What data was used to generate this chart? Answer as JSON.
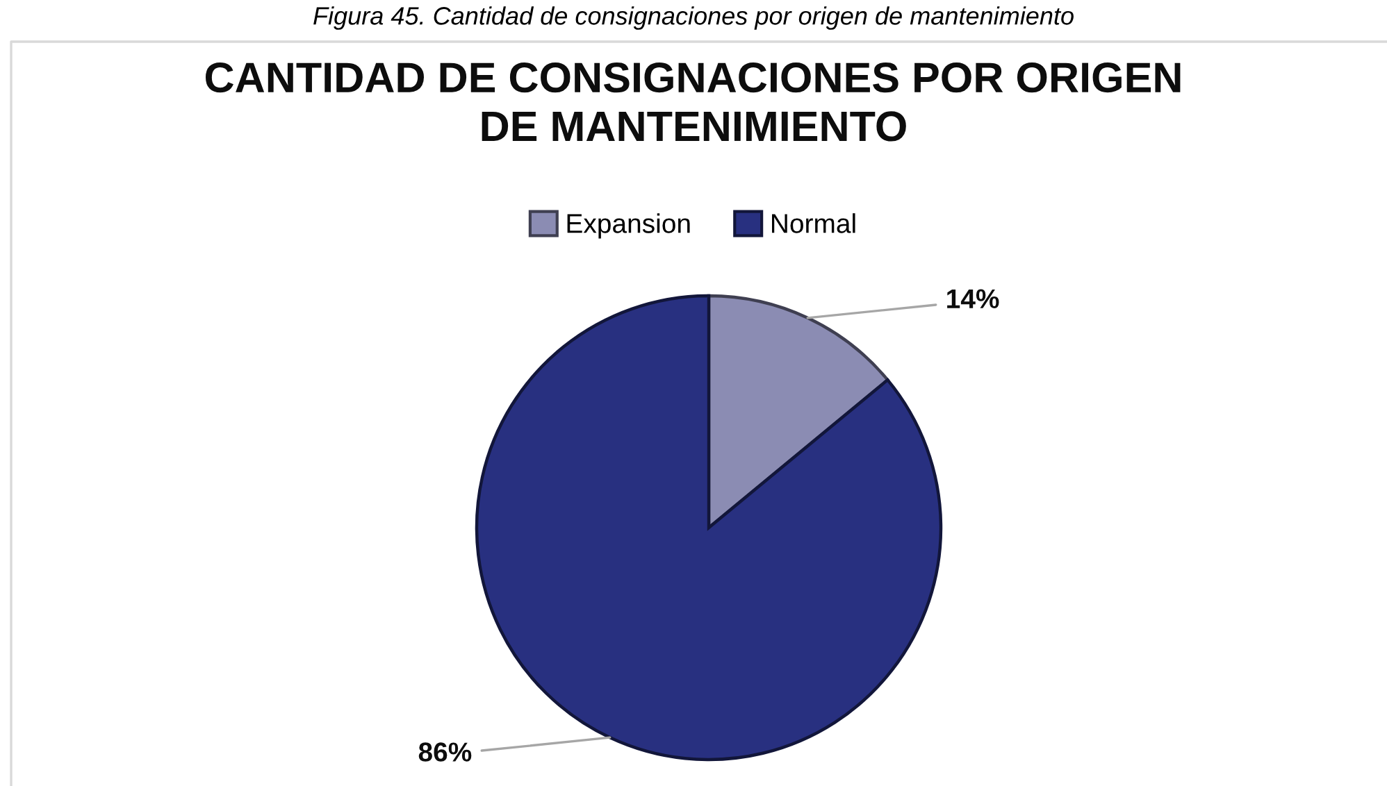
{
  "chart_data": {
    "type": "pie",
    "title": "CANTIDAD DE CONSIGNACIONES POR ORIGEN\nDE MANTENIMIENTO",
    "annotations": [
      "Figura 45. Cantidad de consignaciones por origen de mantenimiento"
    ],
    "categories": [
      "Expansion",
      "Normal"
    ],
    "values": [
      14,
      86
    ],
    "colors": [
      "#8b8cb3",
      "#283080"
    ],
    "value_labels": [
      "14%",
      "86%"
    ],
    "legend": "top"
  }
}
